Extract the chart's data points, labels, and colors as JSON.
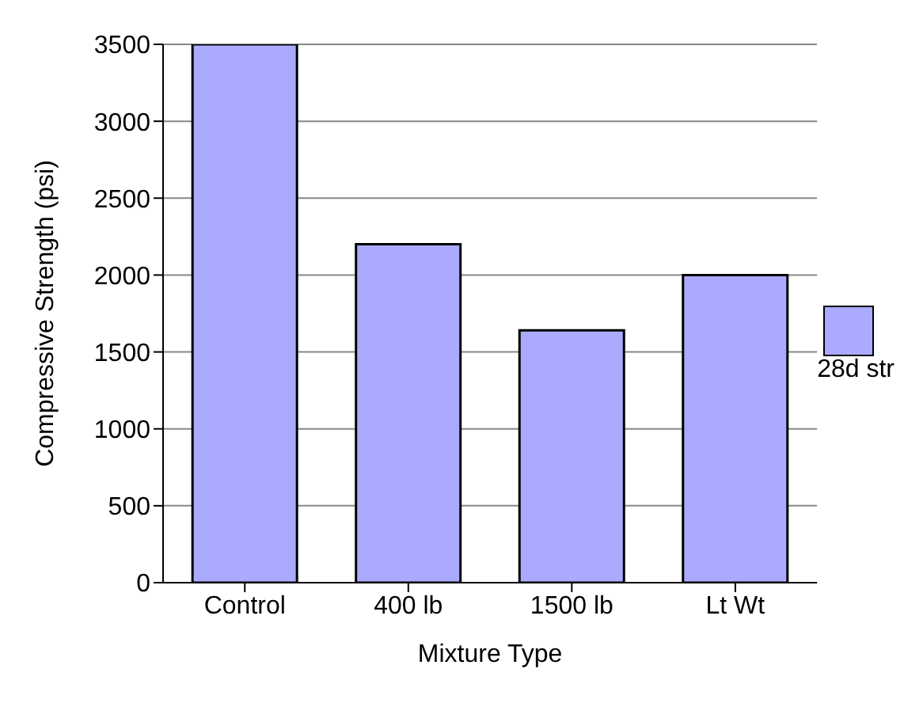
{
  "chart_data": {
    "type": "bar",
    "xlabel": "Mixture Type",
    "ylabel": "Compressive Strength (psi)",
    "categories": [
      "Control",
      "400 lb",
      "1500 lb",
      "Lt  Wt"
    ],
    "series": [
      {
        "name": "28d str",
        "color": "#aaaaff",
        "values": [
          3500,
          2200,
          1640,
          2000
        ]
      }
    ],
    "ylim": [
      0,
      3500
    ],
    "yticks": [
      0,
      500,
      1000,
      1500,
      2000,
      2500,
      3000,
      3500
    ],
    "grid": "y",
    "legend": "right"
  }
}
